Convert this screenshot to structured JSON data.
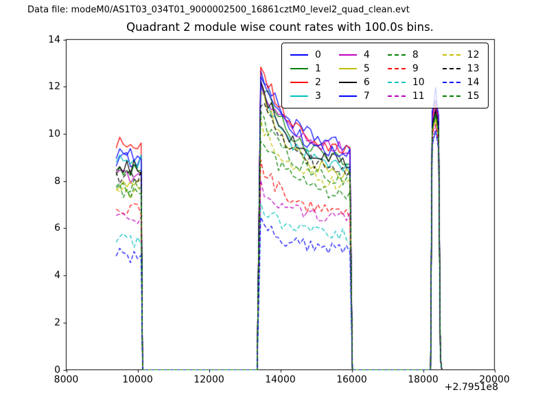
{
  "header": {
    "data_file": "Data file: modeM0/AS1T03_034T01_9000002500_16861cztM0_level2_quad_clean.evt"
  },
  "chart_data": {
    "type": "line",
    "title": "Quadrant 2 module wise count rates with 100.0s bins.",
    "xlabel": "",
    "ylabel": "",
    "xlim": [
      8000,
      20000
    ],
    "ylim": [
      0,
      14
    ],
    "x_axis_offset": "+2.7951e8",
    "x_ticks": [
      8000,
      10000,
      12000,
      14000,
      16000,
      18000,
      20000
    ],
    "y_ticks": [
      0,
      2,
      4,
      6,
      8,
      10,
      12,
      14
    ],
    "bin_width_s": 100,
    "grid": false,
    "legend_position": "upper right",
    "legend_columns": 4,
    "observation_windows": [
      {
        "x_start": 9400,
        "x_end": 10140
      },
      {
        "x_start": 13350,
        "x_end": 16020
      },
      {
        "x_start": 18210,
        "x_end": 18530
      }
    ],
    "noise": {
      "w1": 0.32,
      "w2": 0.3,
      "w3": 0.2
    },
    "series": [
      {
        "name": "0",
        "color": "#0000ff",
        "dashed": false,
        "w1": 8.9,
        "w2_start": 12.75,
        "w2_end": 9.3,
        "w3": 11.0,
        "w3_peak": 11.9
      },
      {
        "name": "1",
        "color": "#008000",
        "dashed": false,
        "w1": 8.5,
        "w2_start": 12.4,
        "w2_end": 8.7,
        "w3": 10.8
      },
      {
        "name": "2",
        "color": "#ff0000",
        "dashed": false,
        "w1": 9.6,
        "w2_start": 13.1,
        "w2_end": 9.0,
        "w3": 11.1
      },
      {
        "name": "3",
        "color": "#00bfbf",
        "dashed": false,
        "w1": 8.8,
        "w2_start": 12.0,
        "w2_end": 8.3,
        "w3": 10.6
      },
      {
        "name": "4",
        "color": "#bf00bf",
        "dashed": false,
        "w1": 8.2,
        "w2_start": 12.2,
        "w2_end": 9.2,
        "w3": 10.9
      },
      {
        "name": "5",
        "color": "#bfbf00",
        "dashed": false,
        "w1": 7.9,
        "w2_start": 11.8,
        "w2_end": 8.1,
        "w3": 10.4
      },
      {
        "name": "6",
        "color": "#000000",
        "dashed": false,
        "w1": 8.6,
        "w2_start": 12.1,
        "w2_end": 8.6,
        "w3": 10.7
      },
      {
        "name": "7",
        "color": "#0000ff",
        "dashed": false,
        "w1": 9.1,
        "w2_start": 12.6,
        "w2_end": 8.9,
        "w3": 11.2,
        "w3_peak": 11.5
      },
      {
        "name": "8",
        "color": "#008000",
        "dashed": true,
        "w1": 7.8,
        "w2_start": 9.9,
        "w2_end": 7.3,
        "w3": 10.5
      },
      {
        "name": "9",
        "color": "#ff0000",
        "dashed": true,
        "w1": 6.8,
        "w2_start": 8.7,
        "w2_end": 6.5,
        "w3": 10.2
      },
      {
        "name": "10",
        "color": "#00bfbf",
        "dashed": true,
        "w1": 5.5,
        "w2_start": 6.9,
        "w2_end": 5.6,
        "w3": 9.9
      },
      {
        "name": "11",
        "color": "#bf00bf",
        "dashed": true,
        "w1": 6.5,
        "w2_start": 7.8,
        "w2_end": 6.3,
        "w3": 10.1
      },
      {
        "name": "12",
        "color": "#bfbf00",
        "dashed": true,
        "w1": 7.5,
        "w2_start": 10.4,
        "w2_end": 7.7,
        "w3": 10.4
      },
      {
        "name": "13",
        "color": "#000000",
        "dashed": true,
        "w1": 8.2,
        "w2_start": 11.4,
        "w2_end": 8.3,
        "w3": 10.8
      },
      {
        "name": "14",
        "color": "#0000ff",
        "dashed": true,
        "w1": 4.85,
        "w2_start": 6.2,
        "w2_end": 5.0,
        "w3": 9.8
      },
      {
        "name": "15",
        "color": "#008000",
        "dashed": true,
        "w1": 7.6,
        "w2_start": 10.8,
        "w2_end": 7.9,
        "w3": 10.6
      }
    ]
  }
}
